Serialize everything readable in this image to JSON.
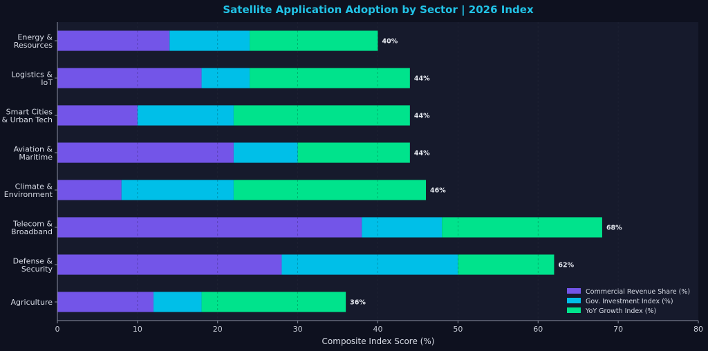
{
  "chart_data": {
    "type": "bar",
    "orientation": "horizontal",
    "stacked": true,
    "title": "Satellite Application Adoption by Sector  |  2026 Index",
    "xlabel": "Composite Index Score (%)",
    "ylabel": "",
    "xlim": [
      0,
      80
    ],
    "xticks": [
      "0",
      "10",
      "20",
      "30",
      "40",
      "50",
      "60",
      "70",
      "80"
    ],
    "grid": "vertical dashed",
    "legend_position": "bottom-right",
    "categories": [
      [
        "Energy &",
        "Resources"
      ],
      [
        "Logistics &",
        "IoT"
      ],
      [
        "Smart Cities",
        "& Urban Tech"
      ],
      [
        "Aviation &",
        "Maritime"
      ],
      [
        "Climate &",
        "Environment"
      ],
      [
        "Telecom &",
        "Broadband"
      ],
      [
        "Defense &",
        "Security"
      ],
      [
        "Agriculture"
      ]
    ],
    "series": [
      {
        "name": "Commercial Revenue Share (%)",
        "color": "#7355e8",
        "values": [
          14,
          18,
          10,
          22,
          8,
          38,
          28,
          12
        ]
      },
      {
        "name": "Gov. Investment Index (%)",
        "color": "#00bfe8",
        "values": [
          10,
          6,
          12,
          8,
          14,
          10,
          22,
          6
        ]
      },
      {
        "name": "YoY Growth Index (%)",
        "color": "#00e38c",
        "values": [
          16,
          20,
          22,
          14,
          24,
          20,
          12,
          18
        ]
      }
    ],
    "totals": [
      "40%",
      "44%",
      "44%",
      "44%",
      "46%",
      "68%",
      "62%",
      "36%"
    ]
  }
}
